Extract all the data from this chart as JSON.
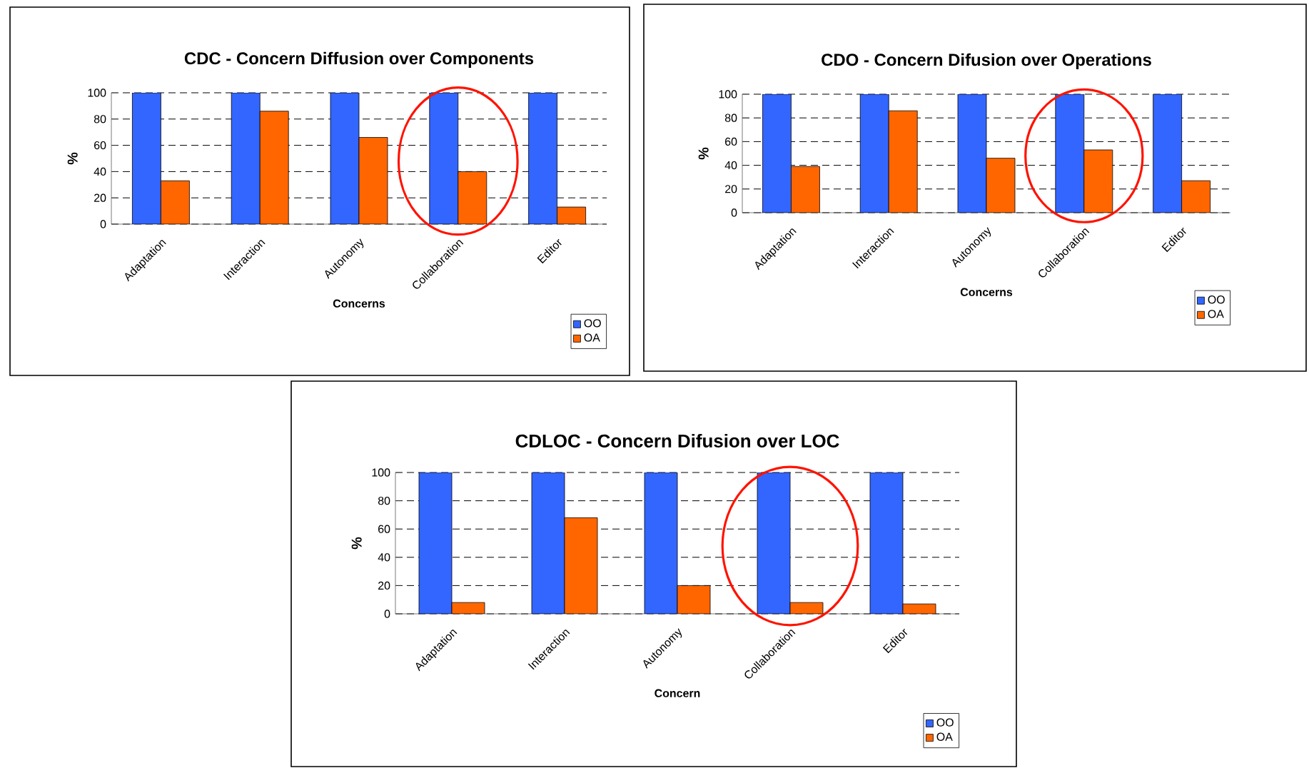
{
  "chart_data": [
    {
      "type": "bar",
      "title": "CDC - Concern Diffusion over Components",
      "xlabel": "Concerns",
      "ylabel": "%",
      "categories": [
        "Adaptation",
        "Interaction",
        "Autonomy",
        "Collaboration",
        "Editor"
      ],
      "series": [
        {
          "name": "OO",
          "color": "#3366ff",
          "values": [
            100,
            100,
            100,
            100,
            100
          ]
        },
        {
          "name": "OA",
          "color": "#ff6600",
          "values": [
            33,
            86,
            66,
            40,
            13
          ]
        }
      ],
      "ylim": [
        0,
        100
      ],
      "yticks": [
        0,
        20,
        40,
        60,
        80,
        100
      ],
      "grid": "y",
      "legend": "bottom right"
    },
    {
      "type": "bar",
      "title": "CDO - Concern Difusion over Operations",
      "xlabel": "Concerns",
      "ylabel": "%",
      "categories": [
        "Adaptation",
        "Interaction",
        "Autonomy",
        "Collaboration",
        "Editor"
      ],
      "series": [
        {
          "name": "OO",
          "color": "#3366ff",
          "values": [
            100,
            100,
            100,
            100,
            100
          ]
        },
        {
          "name": "OA",
          "color": "#ff6600",
          "values": [
            39,
            86,
            46,
            53,
            27
          ]
        }
      ],
      "ylim": [
        0,
        100
      ],
      "yticks": [
        0,
        20,
        40,
        60,
        80,
        100
      ],
      "grid": "y",
      "legend": "bottom right"
    },
    {
      "type": "bar",
      "title": "CDLOC - Concern Difusion over LOC",
      "xlabel": "Concern",
      "ylabel": "%",
      "categories": [
        "Adaptation",
        "Interaction",
        "Autonomy",
        "Collaboration",
        "Editor"
      ],
      "series": [
        {
          "name": "OO",
          "color": "#3366ff",
          "values": [
            100,
            100,
            100,
            100,
            100
          ]
        },
        {
          "name": "OA",
          "color": "#ff6600",
          "values": [
            8,
            68,
            20,
            8,
            7
          ]
        }
      ],
      "ylim": [
        0,
        100
      ],
      "yticks": [
        0,
        20,
        40,
        60,
        80,
        100
      ],
      "grid": "y",
      "legend": "bottom right"
    }
  ]
}
